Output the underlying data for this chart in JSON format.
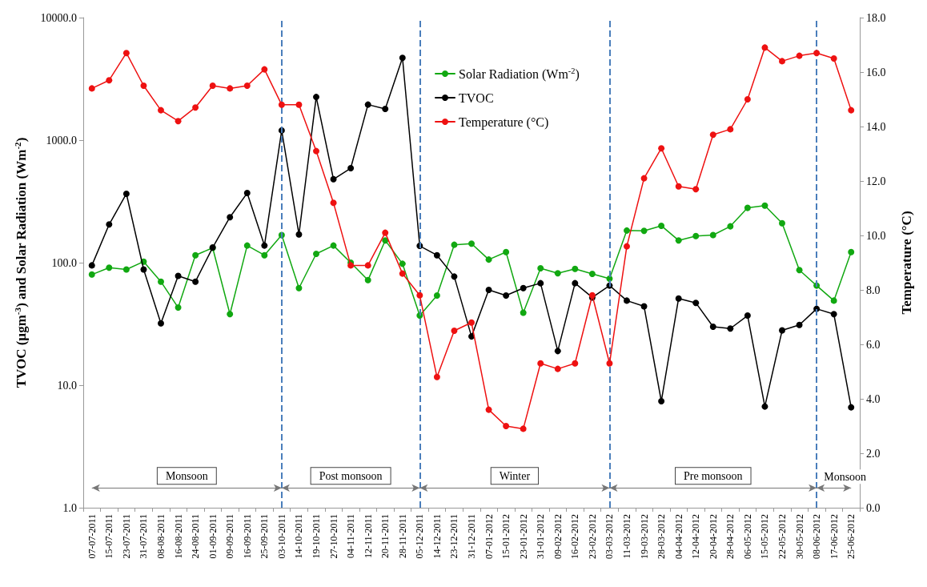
{
  "chart_data": {
    "type": "line",
    "ylabel": "TVOC (µgm$^{-3}$) and Solar Radiation (Wm$^{-2}$)",
    "y2label": "Temperature (°C)",
    "categories": [
      "07-07-2011",
      "15-07-2011",
      "23-07-2011",
      "31-07-2011",
      "08-08-2011",
      "16-08-2011",
      "24-08-2011",
      "01-09-2011",
      "09-09-2011",
      "16-09-2011",
      "25-09-2011",
      "03-10-2011",
      "14-10-2011",
      "19-10-2011",
      "27-10-2011",
      "04-11-2011",
      "12-11-2011",
      "20-11-2011",
      "28-11-2011",
      "05-12-2011",
      "14-12-2011",
      "23-12-2011",
      "31-12-2011",
      "07-01-2012",
      "15-01-2012",
      "23-01-2012",
      "31-01-2012",
      "09-02-2012",
      "16-02-2012",
      "23-02-2012",
      "03-03-2012",
      "11-03-2012",
      "19-03-2012",
      "28-03-2012",
      "04-04-2012",
      "12-04-2012",
      "20-04-2012",
      "28-04-2012",
      "06-05-2012",
      "15-05-2012",
      "22-05-2012",
      "30-05-2012",
      "08-06-2012",
      "17-06-2012",
      "25-06-2012"
    ],
    "series": [
      {
        "name": "Solar Radiation (Wm$^{-2}$)",
        "color": "#11a811",
        "values": [
          80,
          91,
          88,
          102,
          70,
          43,
          115,
          132,
          38,
          138,
          115,
          168,
          62,
          118,
          138,
          100,
          72,
          152,
          98,
          37,
          54,
          140,
          143,
          106,
          122,
          39,
          90,
          82,
          89,
          81,
          74,
          183,
          182,
          200,
          152,
          165,
          168,
          198,
          280,
          292,
          210,
          87,
          65,
          49,
          122
        ]
      },
      {
        "name": "TVOC",
        "color": "#000000",
        "values": [
          95,
          205,
          365,
          88,
          32,
          78,
          70,
          133,
          235,
          370,
          138,
          1200,
          170,
          2250,
          480,
          590,
          1950,
          1800,
          4700,
          137,
          115,
          77,
          25,
          60,
          54,
          62,
          68,
          19,
          68,
          52,
          65,
          49,
          44,
          7.4,
          51,
          47,
          30,
          29,
          37,
          6.7,
          28,
          31,
          42,
          38,
          6.6
        ]
      },
      {
        "name": "Temperature (°C)",
        "color": "#ee1111",
        "axis": "y2",
        "values": [
          15.4,
          15.7,
          16.7,
          15.5,
          14.6,
          14.2,
          14.7,
          15.5,
          15.4,
          15.5,
          16.1,
          14.8,
          14.8,
          13.1,
          11.2,
          8.9,
          8.9,
          10.1,
          8.6,
          7.8,
          4.8,
          6.5,
          6.8,
          3.6,
          3.0,
          2.9,
          5.3,
          5.1,
          5.3,
          7.8,
          5.3,
          9.6,
          12.1,
          13.2,
          11.8,
          11.7,
          13.7,
          13.9,
          15.0,
          16.9,
          16.4,
          16.6,
          16.7,
          16.5,
          14.6
        ]
      }
    ],
    "log": "y",
    "ylim": [
      1,
      10000
    ],
    "yticks": [
      {
        "value": 1,
        "label": "1.0"
      },
      {
        "value": 10,
        "label": "10.0"
      },
      {
        "value": 100,
        "label": "100.0"
      },
      {
        "value": 1000,
        "label": "1000.0"
      },
      {
        "value": 10000,
        "label": "10000.0"
      }
    ],
    "y2lim": [
      0,
      18
    ],
    "y2ticks": [
      {
        "value": 0,
        "label": "0.0"
      },
      {
        "value": 2,
        "label": "2.0"
      },
      {
        "value": 4,
        "label": "4.0"
      },
      {
        "value": 6,
        "label": "6.0"
      },
      {
        "value": 8,
        "label": "8.0"
      },
      {
        "value": 10,
        "label": "10.0"
      },
      {
        "value": 12,
        "label": "12.0"
      },
      {
        "value": 14,
        "label": "14.0"
      },
      {
        "value": 16,
        "label": "16.0"
      },
      {
        "value": 18,
        "label": "18.0"
      }
    ],
    "ref_lines": [
      {
        "axis": "x",
        "value": "03-10-2011",
        "color": "#4a7ebb",
        "line_style": "dashed"
      },
      {
        "axis": "x",
        "value": "05-12-2011",
        "color": "#4a7ebb",
        "line_style": "dashed"
      },
      {
        "axis": "x",
        "value": "03-03-2012",
        "color": "#4a7ebb",
        "line_style": "dashed"
      },
      {
        "axis": "x",
        "value": "08-06-2012",
        "color": "#4a7ebb",
        "line_style": "dashed"
      }
    ],
    "annotations": [
      "Monsoon",
      "Post monsoon",
      "Winter",
      "Pre monsoon",
      "Monsoon"
    ],
    "marker": "circle",
    "line_style": "solid",
    "grid": false,
    "legend": "top"
  }
}
